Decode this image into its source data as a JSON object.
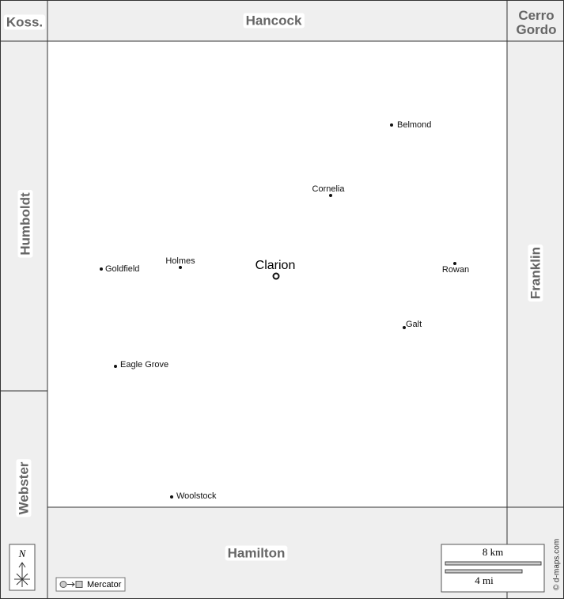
{
  "map": {
    "neighbors": {
      "northwest": "Koss.",
      "north": "Hancock",
      "northeast": "Cerro Gordo",
      "west_north": "Humboldt",
      "west_south": "Webster",
      "east": "Franklin",
      "south": "Hamilton"
    },
    "seat": "Clarion",
    "towns": [
      "Belmond",
      "Cornelia",
      "Holmes",
      "Goldfield",
      "Rowan",
      "Galt",
      "Eagle Grove",
      "Woolstock"
    ],
    "compass": "N",
    "projection": "Mercator",
    "scale": {
      "metric": "8 km",
      "imperial": "4 mi"
    },
    "credit": "© d-maps.com"
  }
}
